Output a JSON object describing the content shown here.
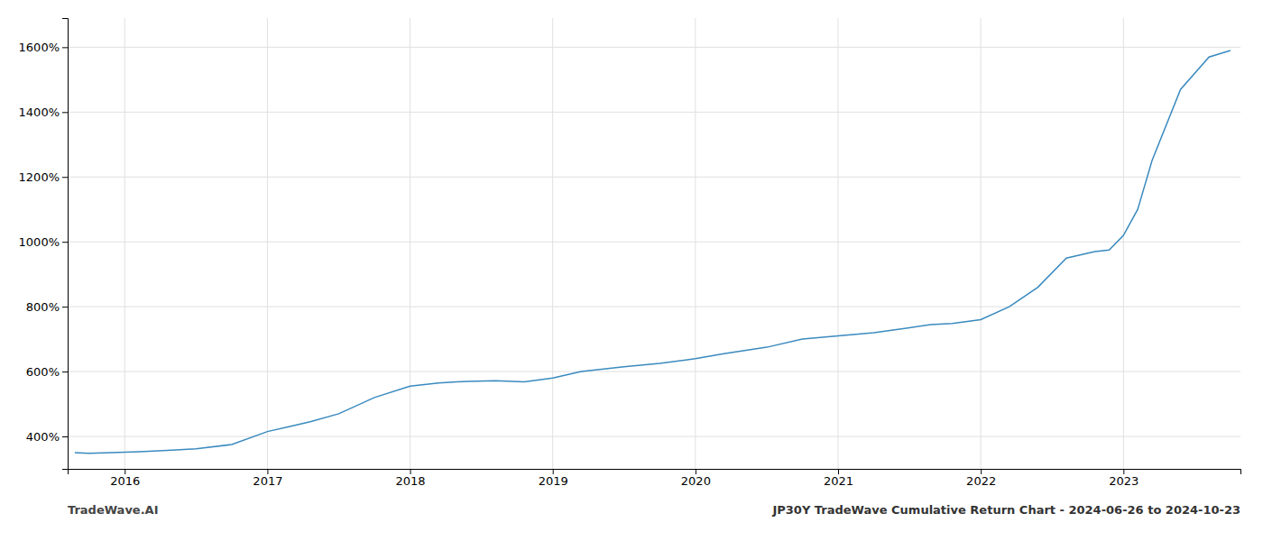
{
  "chart_data": {
    "type": "line",
    "title": "JP30Y TradeWave Cumulative Return Chart - 2024-06-26 to 2024-10-23",
    "annotations": [
      "TradeWave.AI"
    ],
    "x": [
      2015.65,
      2015.75,
      2015.9,
      2016.1,
      2016.3,
      2016.5,
      2016.75,
      2017.0,
      2017.15,
      2017.3,
      2017.5,
      2017.75,
      2018.0,
      2018.2,
      2018.4,
      2018.6,
      2018.8,
      2019.0,
      2019.2,
      2019.5,
      2019.75,
      2020.0,
      2020.2,
      2020.5,
      2020.75,
      2021.0,
      2021.25,
      2021.5,
      2021.65,
      2021.8,
      2022.0,
      2022.2,
      2022.4,
      2022.6,
      2022.8,
      2022.9,
      2023.0,
      2023.1,
      2023.2,
      2023.4,
      2023.6,
      2023.75
    ],
    "values": [
      350,
      348,
      350,
      353,
      357,
      362,
      375,
      415,
      430,
      445,
      470,
      520,
      555,
      565,
      570,
      572,
      568,
      580,
      600,
      615,
      625,
      640,
      655,
      675,
      700,
      710,
      720,
      735,
      745,
      748,
      760,
      800,
      860,
      950,
      970,
      975,
      1020,
      1100,
      1250,
      1470,
      1570,
      1590
    ],
    "color": "#3a8abf",
    "xlim": [
      2015.6,
      2023.82
    ],
    "ylim": [
      300,
      1690
    ],
    "xticks": [
      2016,
      2017,
      2018,
      2019,
      2020,
      2021,
      2022,
      2023
    ],
    "yticks": [
      {
        "value": 400,
        "label": "400%"
      },
      {
        "value": 600,
        "label": "600%"
      },
      {
        "value": 800,
        "label": "800%"
      },
      {
        "value": 1000,
        "label": "1000%"
      },
      {
        "value": 1200,
        "label": "1200%"
      },
      {
        "value": 1400,
        "label": "1400%"
      },
      {
        "value": 1600,
        "label": "1600%"
      }
    ],
    "grid": true
  }
}
